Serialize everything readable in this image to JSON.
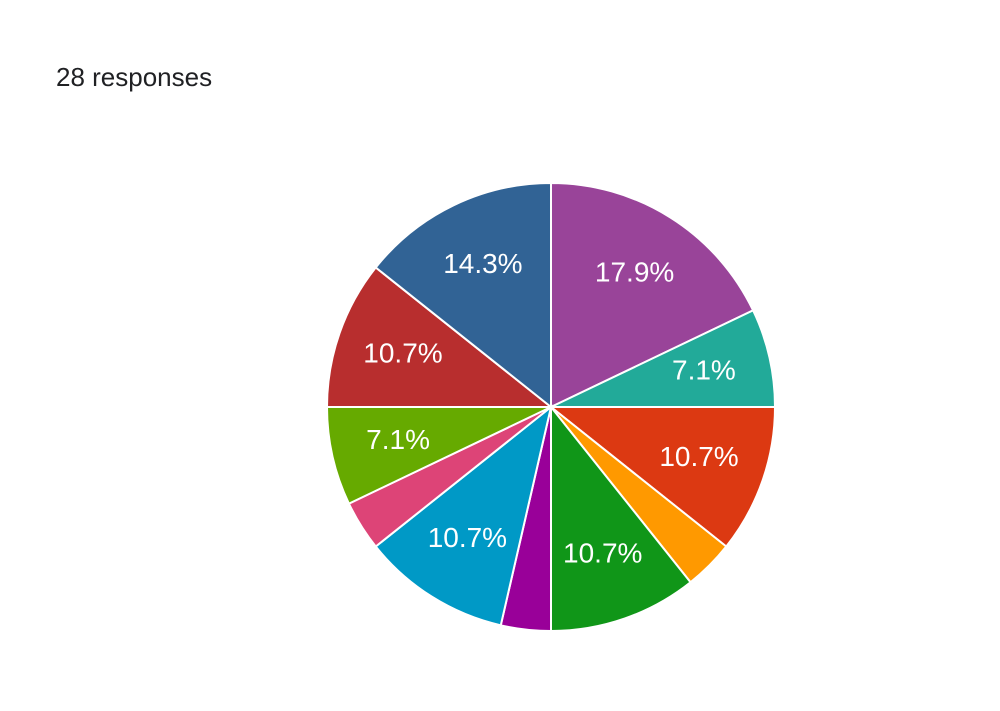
{
  "chart_data": {
    "type": "pie",
    "title": "28 responses",
    "values": [
      17.9,
      7.1,
      10.7,
      3.6,
      10.7,
      3.6,
      10.7,
      3.6,
      7.1,
      10.7,
      14.3
    ],
    "value_labels": [
      "17.9%",
      "7.1%",
      "10.7%",
      null,
      "10.7%",
      null,
      "10.7%",
      null,
      "7.1%",
      "10.7%",
      "14.3%"
    ],
    "colors": [
      "#994499",
      "#22aa99",
      "#dc3912",
      "#ff9900",
      "#109618",
      "#990099",
      "#0099c6",
      "#dd4477",
      "#66aa00",
      "#b82e2e",
      "#316395"
    ]
  }
}
